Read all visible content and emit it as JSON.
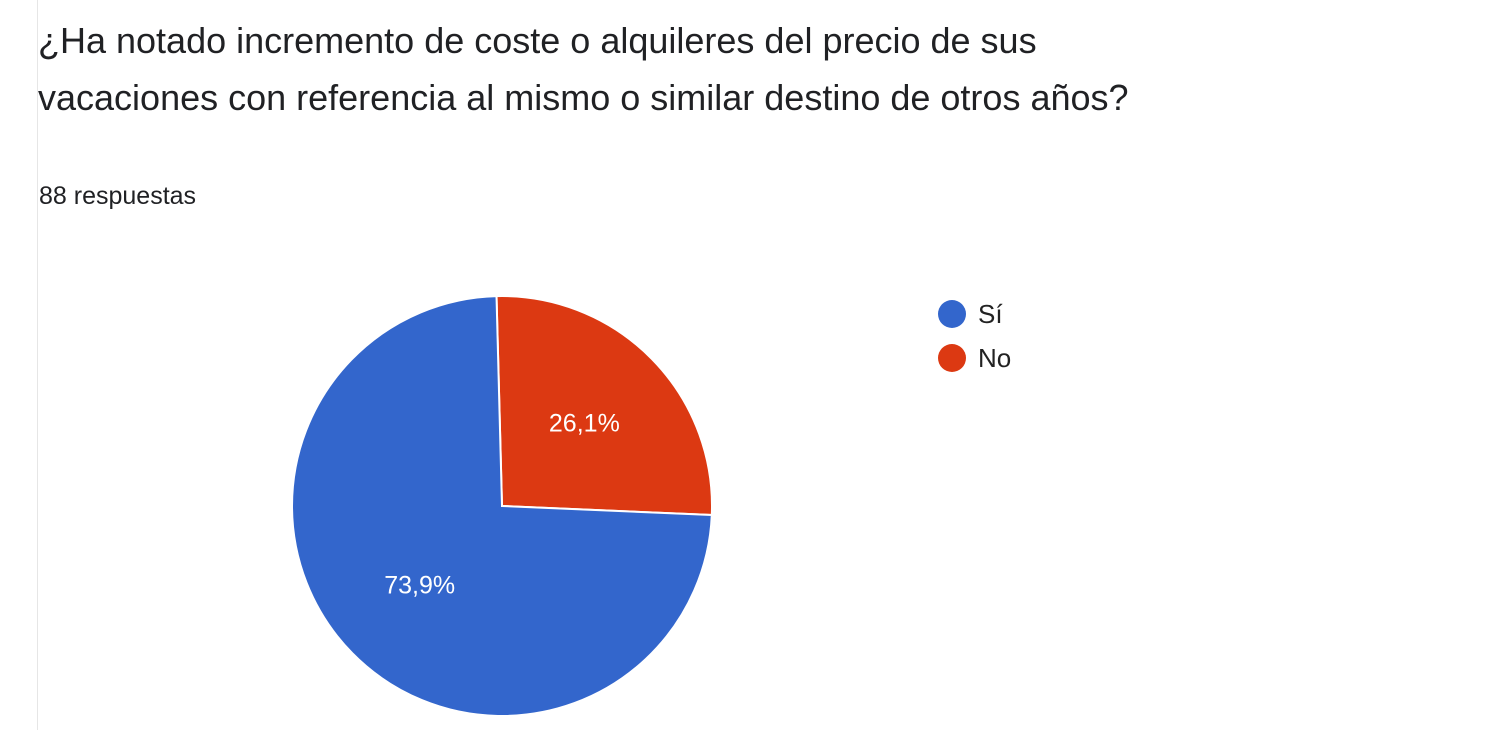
{
  "question": {
    "title_line1": "¿Ha notado incremento de coste o alquileres del precio de sus",
    "title_line2": "vacaciones con referencia al mismo o similar destino de otros años?",
    "response_count": "88 respuestas"
  },
  "chart_data": {
    "type": "pie",
    "title": "",
    "slices": [
      {
        "label": "Sí",
        "value": 73.9,
        "display": "73,9%",
        "color": "#3366cc"
      },
      {
        "label": "No",
        "value": 26.1,
        "display": "26,1%",
        "color": "#dc3912"
      }
    ],
    "legend": {
      "position": "right",
      "entries": [
        "Sí",
        "No"
      ]
    },
    "start_angle": "top, clockwise (No first)"
  }
}
